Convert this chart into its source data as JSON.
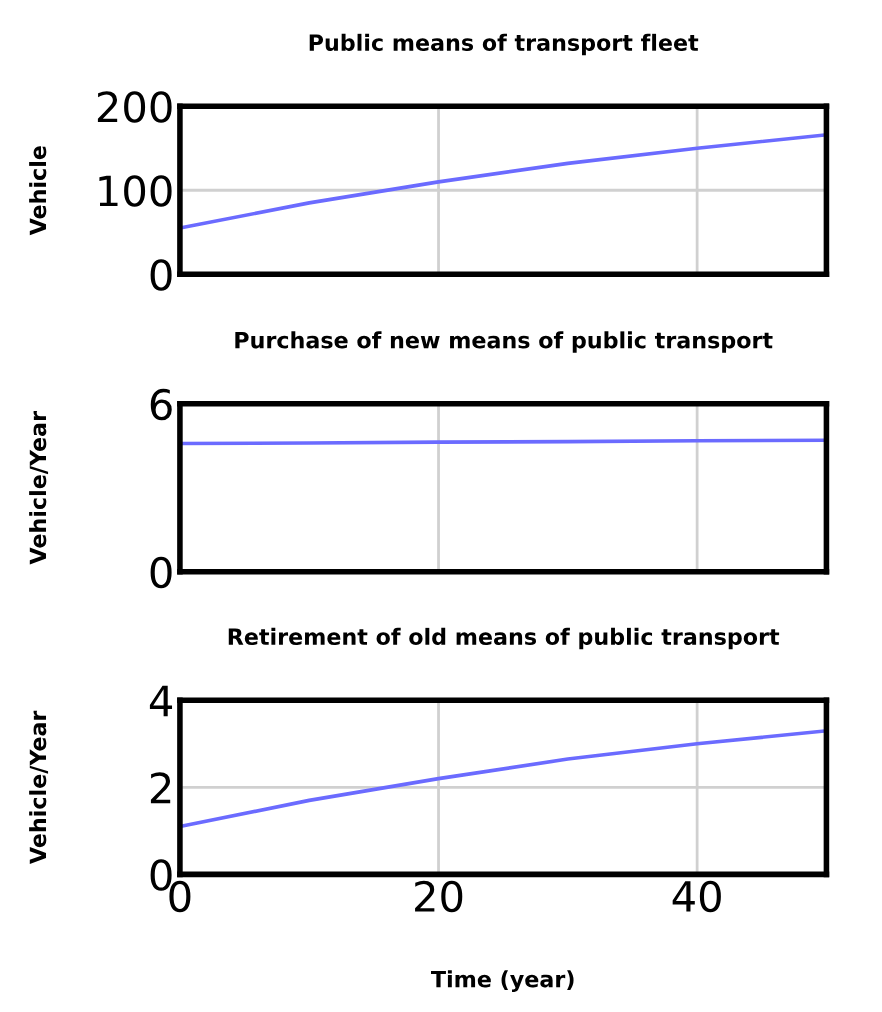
{
  "chart_data": [
    {
      "type": "line",
      "title": "Public means of transport fleet",
      "ylabel": "Vehicle",
      "x": [
        0,
        10,
        20,
        30,
        40,
        50
      ],
      "series": [
        {
          "color": "#6b6bff",
          "values": [
            55,
            85,
            110,
            132,
            150,
            166
          ]
        }
      ],
      "xlim": [
        0,
        50
      ],
      "xticks": [
        0,
        20,
        40
      ],
      "ylim": [
        0,
        200
      ],
      "yticks": [
        0,
        100,
        200
      ],
      "grid": true,
      "tick_labels": "y"
    },
    {
      "type": "line",
      "title": "Purchase of new means of public transport",
      "ylabel": "Vehicle/Year",
      "x": [
        0,
        10,
        20,
        30,
        40,
        50
      ],
      "series": [
        {
          "color": "#6b6bff",
          "values": [
            4.58,
            4.6,
            4.63,
            4.65,
            4.68,
            4.7
          ]
        }
      ],
      "xlim": [
        0,
        50
      ],
      "xticks": [
        0,
        20,
        40
      ],
      "ylim": [
        0,
        6
      ],
      "yticks": [
        0,
        6
      ],
      "grid": "x",
      "tick_labels": "y"
    },
    {
      "type": "line",
      "title": "Retirement of old means of public transport",
      "ylabel": "Vehicle/Year",
      "xlabel": "Time (year)",
      "x": [
        0,
        10,
        20,
        30,
        40,
        50
      ],
      "series": [
        {
          "color": "#6b6bff",
          "values": [
            1.1,
            1.7,
            2.2,
            2.65,
            3.0,
            3.3
          ]
        }
      ],
      "xlim": [
        0,
        50
      ],
      "xticks": [
        0,
        20,
        40
      ],
      "ylim": [
        0,
        4
      ],
      "yticks": [
        0,
        2,
        4
      ],
      "grid": true
    }
  ]
}
